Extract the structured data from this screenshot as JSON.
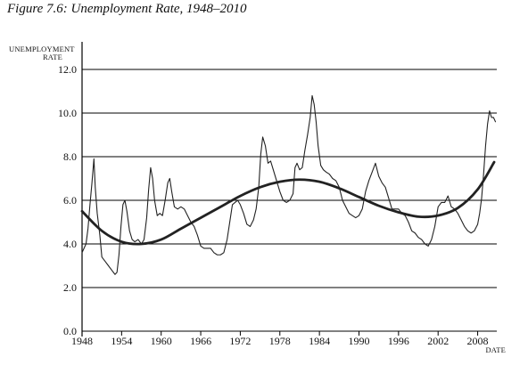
{
  "figure": {
    "title": "Figure 7.6: Unemployment Rate, 1948–2010"
  },
  "chart_data": {
    "type": "line",
    "title": "Figure 7.6: Unemployment Rate, 1948–2010",
    "ylabel_line1": "UNEMPLOYMENT",
    "ylabel_line2": "RATE",
    "xlabel": "DATE",
    "xlim": [
      1948,
      2010.9
    ],
    "ylim": [
      0,
      12
    ],
    "x_ticks": [
      1948,
      1954,
      1960,
      1966,
      1972,
      1978,
      1984,
      1990,
      1996,
      2002,
      2008
    ],
    "y_ticks": [
      {
        "value": 0,
        "label": "0.0"
      },
      {
        "value": 2,
        "label": "2.0"
      },
      {
        "value": 4,
        "label": "4.0"
      },
      {
        "value": 6,
        "label": "6.0"
      },
      {
        "value": 8,
        "label": "8.0"
      },
      {
        "value": 10,
        "label": "10.0"
      },
      {
        "value": 12,
        "label": "12.0"
      }
    ],
    "grid": "horizontal",
    "series": [
      {
        "style": "thin",
        "color": "#222222",
        "x": [
          1948.0,
          1948.3,
          1948.6,
          1948.9,
          1949.2,
          1949.5,
          1949.8,
          1950.0,
          1950.3,
          1950.7,
          1951.0,
          1951.5,
          1952.0,
          1952.5,
          1953.0,
          1953.3,
          1953.6,
          1953.9,
          1954.2,
          1954.5,
          1954.8,
          1955.2,
          1955.6,
          1956.0,
          1956.5,
          1957.0,
          1957.4,
          1957.8,
          1958.1,
          1958.4,
          1958.7,
          1959.0,
          1959.4,
          1959.8,
          1960.2,
          1960.6,
          1961.0,
          1961.3,
          1961.6,
          1962.0,
          1962.5,
          1963.0,
          1963.5,
          1964.0,
          1964.5,
          1965.0,
          1965.5,
          1966.0,
          1966.5,
          1967.0,
          1967.5,
          1968.0,
          1968.5,
          1969.0,
          1969.5,
          1970.0,
          1970.4,
          1970.8,
          1971.2,
          1971.6,
          1972.0,
          1972.5,
          1973.0,
          1973.5,
          1974.0,
          1974.4,
          1974.8,
          1975.1,
          1975.4,
          1975.8,
          1976.2,
          1976.6,
          1977.0,
          1977.5,
          1978.0,
          1978.5,
          1979.0,
          1979.5,
          1980.0,
          1980.3,
          1980.6,
          1981.0,
          1981.4,
          1981.8,
          1982.2,
          1982.6,
          1982.9,
          1983.2,
          1983.5,
          1983.8,
          1984.2,
          1984.6,
          1985.0,
          1985.5,
          1986.0,
          1986.5,
          1987.0,
          1987.5,
          1988.0,
          1988.5,
          1989.0,
          1989.5,
          1990.0,
          1990.5,
          1991.0,
          1991.5,
          1992.0,
          1992.5,
          1993.0,
          1993.5,
          1994.0,
          1994.5,
          1995.0,
          1995.5,
          1996.0,
          1996.5,
          1997.0,
          1997.5,
          1998.0,
          1998.5,
          1999.0,
          1999.5,
          2000.0,
          2000.5,
          2001.0,
          2001.5,
          2002.0,
          2002.5,
          2003.0,
          2003.5,
          2004.0,
          2004.5,
          2005.0,
          2005.5,
          2006.0,
          2006.5,
          2007.0,
          2007.5,
          2008.0,
          2008.3,
          2008.6,
          2008.9,
          2009.2,
          2009.5,
          2009.8,
          2010.1,
          2010.4,
          2010.7
        ],
        "y": [
          3.6,
          3.8,
          4.0,
          4.7,
          5.8,
          6.8,
          7.9,
          6.6,
          5.4,
          4.4,
          3.4,
          3.2,
          3.0,
          2.8,
          2.6,
          2.7,
          3.5,
          4.8,
          5.8,
          6.0,
          5.5,
          4.6,
          4.2,
          4.1,
          4.2,
          4.0,
          4.2,
          5.2,
          6.5,
          7.5,
          7.0,
          6.0,
          5.3,
          5.4,
          5.3,
          6.0,
          6.8,
          7.0,
          6.4,
          5.7,
          5.6,
          5.7,
          5.6,
          5.3,
          5.0,
          4.8,
          4.4,
          3.9,
          3.8,
          3.8,
          3.8,
          3.6,
          3.5,
          3.5,
          3.6,
          4.2,
          5.0,
          5.8,
          5.9,
          6.0,
          5.8,
          5.4,
          4.9,
          4.8,
          5.1,
          5.6,
          6.6,
          8.1,
          8.9,
          8.5,
          7.7,
          7.8,
          7.4,
          6.9,
          6.4,
          6.0,
          5.9,
          6.0,
          6.3,
          7.5,
          7.7,
          7.4,
          7.5,
          8.3,
          9.0,
          9.8,
          10.8,
          10.4,
          9.6,
          8.5,
          7.6,
          7.4,
          7.3,
          7.2,
          7.0,
          6.9,
          6.6,
          6.0,
          5.7,
          5.4,
          5.3,
          5.2,
          5.3,
          5.6,
          6.4,
          6.9,
          7.3,
          7.7,
          7.1,
          6.8,
          6.6,
          6.1,
          5.6,
          5.6,
          5.6,
          5.4,
          5.3,
          5.0,
          4.6,
          4.5,
          4.3,
          4.2,
          4.0,
          3.9,
          4.2,
          4.8,
          5.7,
          5.9,
          5.9,
          6.2,
          5.7,
          5.6,
          5.4,
          5.1,
          4.8,
          4.6,
          4.5,
          4.6,
          4.9,
          5.4,
          6.1,
          7.2,
          8.5,
          9.5,
          10.1,
          9.8,
          9.8,
          9.6
        ]
      },
      {
        "style": "thick",
        "color": "#222222",
        "x": [
          1948,
          1951,
          1954,
          1957,
          1960,
          1963,
          1966,
          1969,
          1972,
          1975,
          1978,
          1981,
          1984,
          1987,
          1990,
          1993,
          1996,
          1999,
          2002,
          2005,
          2008,
          2010.5
        ],
        "y": [
          5.5,
          4.6,
          4.1,
          4.0,
          4.2,
          4.7,
          5.2,
          5.7,
          6.2,
          6.6,
          6.85,
          6.95,
          6.85,
          6.55,
          6.15,
          5.75,
          5.45,
          5.25,
          5.3,
          5.65,
          6.5,
          7.75
        ]
      }
    ]
  }
}
